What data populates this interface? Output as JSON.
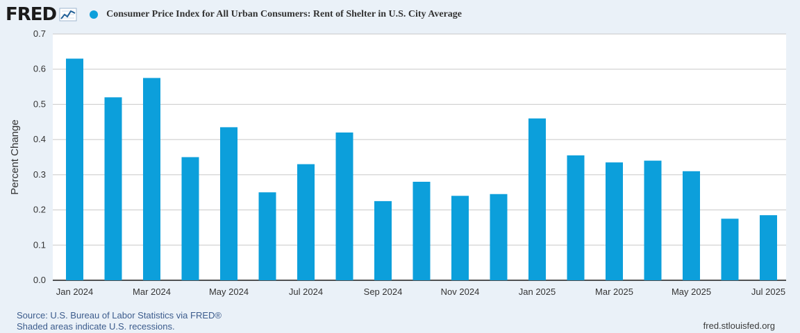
{
  "header": {
    "logo_text": "FRED",
    "series_color": "#0c9fdb",
    "title": "Consumer Price Index for All Urban Consumers: Rent of Shelter in U.S. City Average"
  },
  "footer": {
    "source": "Source: U.S. Bureau of Labor Statistics via FRED®",
    "recessions_note": "Shaded areas indicate U.S. recessions.",
    "site": "fred.stlouisfed.org"
  },
  "chart_data": {
    "type": "bar",
    "title": "Consumer Price Index for All Urban Consumers: Rent of Shelter in U.S. City Average",
    "ylabel": "Percent Change",
    "xlabel": "",
    "ylim": [
      0,
      0.7
    ],
    "yticks": [
      "0.0",
      "0.1",
      "0.2",
      "0.3",
      "0.4",
      "0.5",
      "0.6",
      "0.7"
    ],
    "grid": true,
    "categories": [
      "Jan 2024",
      "Feb 2024",
      "Mar 2024",
      "Apr 2024",
      "May 2024",
      "Jun 2024",
      "Jul 2024",
      "Aug 2024",
      "Sep 2024",
      "Oct 2024",
      "Nov 2024",
      "Dec 2024",
      "Jan 2025",
      "Feb 2025",
      "Mar 2025",
      "Apr 2025",
      "May 2025",
      "Jun 2025",
      "Jul 2025"
    ],
    "xtick_labels": [
      "Jan 2024",
      "",
      "Mar 2024",
      "",
      "May 2024",
      "",
      "Jul 2024",
      "",
      "Sep 2024",
      "",
      "Nov 2024",
      "",
      "Jan 2025",
      "",
      "Mar 2025",
      "",
      "May 2025",
      "",
      "Jul 2025"
    ],
    "values": [
      0.63,
      0.52,
      0.575,
      0.35,
      0.435,
      0.25,
      0.33,
      0.42,
      0.225,
      0.28,
      0.24,
      0.245,
      0.46,
      0.355,
      0.335,
      0.34,
      0.31,
      0.175,
      0.185
    ],
    "series_name": "Consumer Price Index for All Urban Consumers: Rent of Shelter in U.S. City Average",
    "bar_color": "#0c9fdb"
  }
}
